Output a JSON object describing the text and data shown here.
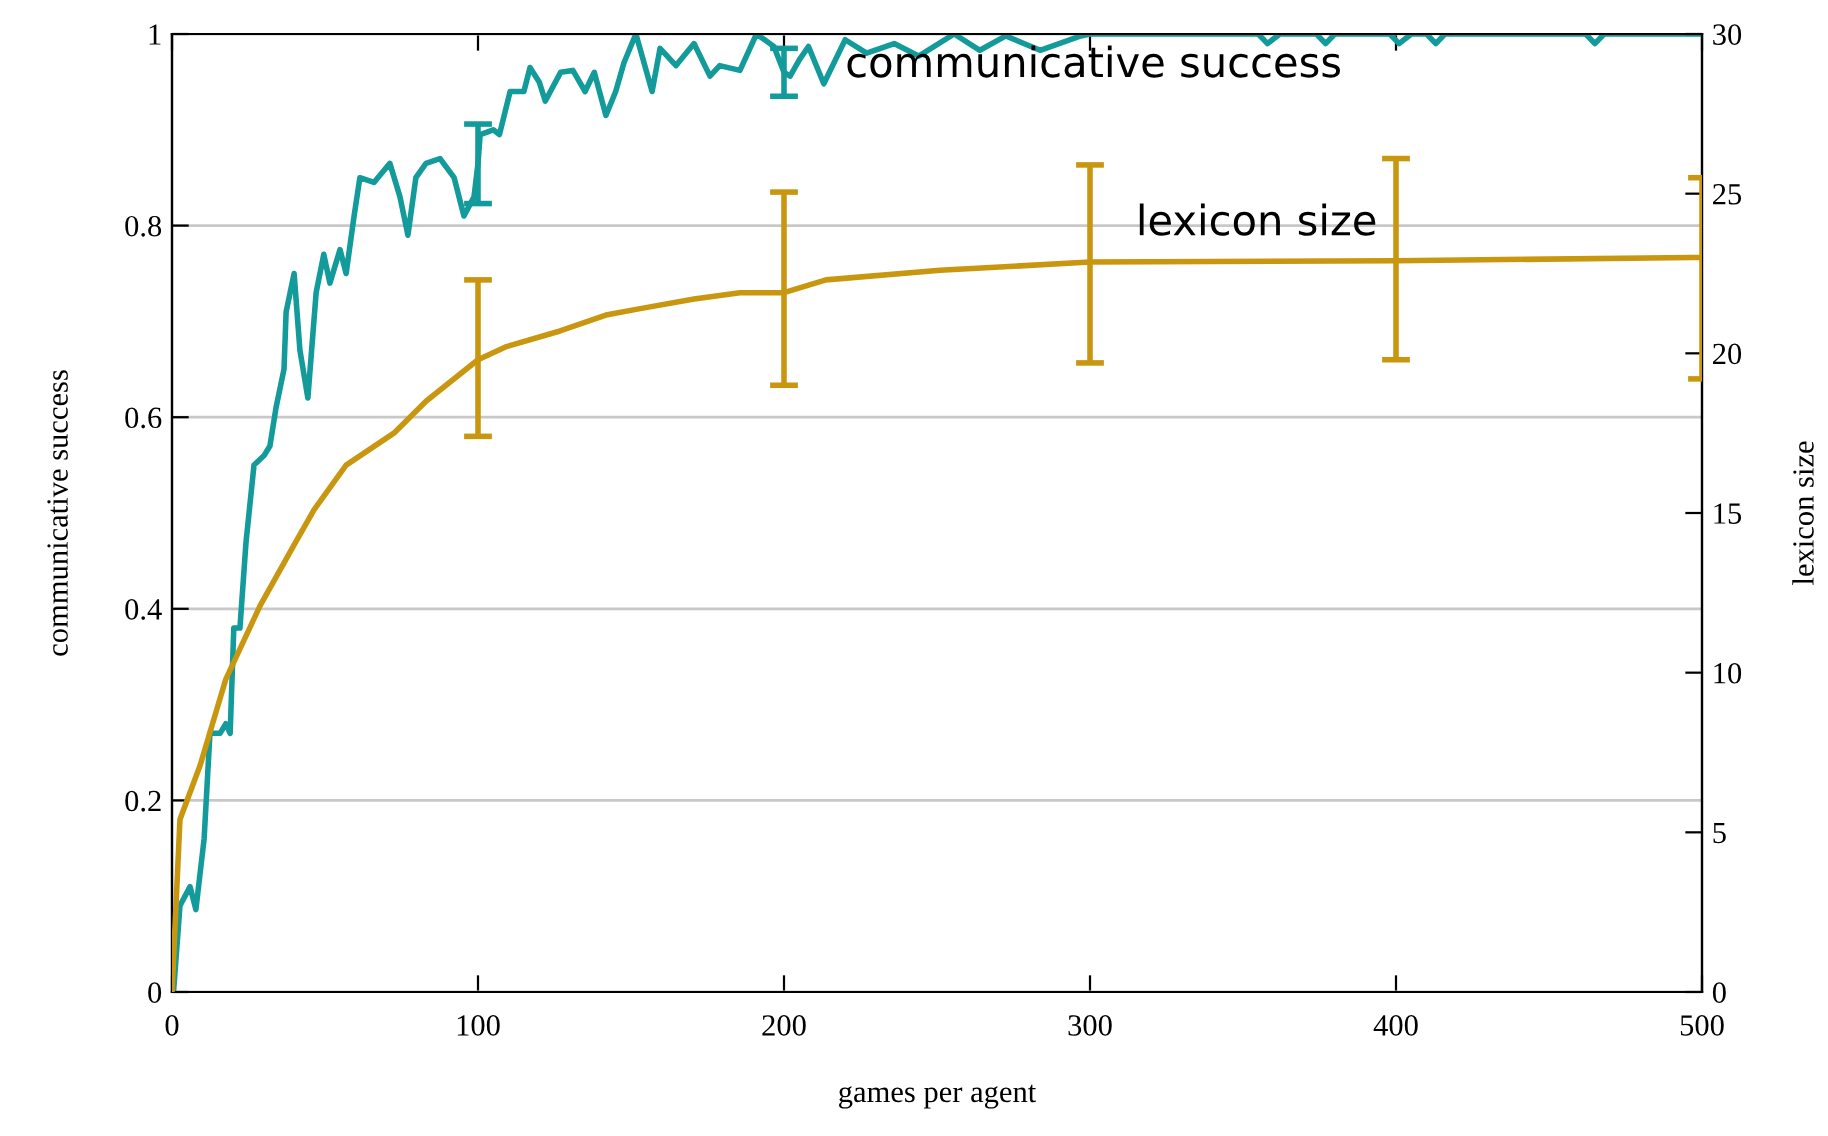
{
  "chart_data": {
    "type": "line",
    "xlabel": "games per agent",
    "ylabel": "communicative success",
    "y2label": "lexicon size",
    "xlim": [
      0,
      500
    ],
    "xticks": [
      0,
      100,
      200,
      300,
      400,
      500
    ],
    "ylim": [
      0,
      1
    ],
    "yticks": [
      0,
      0.2,
      0.4,
      0.6,
      0.8,
      1
    ],
    "y2lim": [
      0,
      30
    ],
    "y2ticks": [
      0,
      5,
      10,
      15,
      20,
      25,
      30
    ],
    "grid": "y",
    "legend": false,
    "marker": "none",
    "line_style": "solid",
    "series": [
      {
        "name": "communicative success",
        "color": "#129b9a",
        "x": [
          0.5,
          2.6,
          5.9,
          7.8,
          10.5,
          12.4,
          15.7,
          17.6,
          19,
          20.2,
          22.2,
          24.2,
          26.8,
          30.1,
          32,
          34,
          36.6,
          37.3,
          39.9,
          41.8,
          44.4,
          47.1,
          49.6,
          51.6,
          54.9,
          56.9,
          59.5,
          61.4,
          66,
          71.2,
          74.5,
          77.1,
          79.7,
          83,
          87.6,
          92.2,
          95.4,
          98.7,
          100,
          100.7,
          105,
          107,
          110.5,
          115,
          117,
          120,
          122,
          127,
          131,
          135,
          138,
          141.8,
          145,
          147.7,
          151.6,
          156.9,
          159.5,
          164.7,
          170.6,
          175.8,
          179,
          185.6,
          191,
          196.7,
          200,
          202,
          205,
          208,
          213,
          220,
          227,
          236,
          244,
          255.6,
          264,
          272.5,
          283.7,
          297,
          300,
          355,
          358,
          362,
          374,
          377,
          380,
          398,
          401,
          405,
          410,
          413,
          416,
          462,
          465,
          468,
          500
        ],
        "values": [
          0,
          0.09,
          0.11,
          0.086,
          0.16,
          0.27,
          0.27,
          0.28,
          0.27,
          0.38,
          0.38,
          0.47,
          0.55,
          0.56,
          0.57,
          0.61,
          0.65,
          0.71,
          0.75,
          0.67,
          0.62,
          0.73,
          0.77,
          0.74,
          0.775,
          0.75,
          0.81,
          0.85,
          0.845,
          0.865,
          0.83,
          0.79,
          0.85,
          0.865,
          0.87,
          0.85,
          0.81,
          0.83,
          0.865,
          0.895,
          0.9,
          0.895,
          0.94,
          0.94,
          0.965,
          0.95,
          0.93,
          0.96,
          0.962,
          0.94,
          0.96,
          0.915,
          0.94,
          0.97,
          1,
          0.94,
          0.985,
          0.967,
          0.99,
          0.956,
          0.967,
          0.962,
          1,
          0.987,
          0.96,
          0.956,
          0.973,
          0.987,
          0.948,
          0.994,
          0.98,
          0.99,
          0.977,
          1,
          0.983,
          0.998,
          0.983,
          0.998,
          1,
          1,
          0.99,
          1,
          1,
          0.99,
          1,
          1,
          0.99,
          1,
          1,
          0.99,
          1,
          1,
          0.99,
          1,
          1
        ],
        "errors": [
          null,
          null,
          null,
          null,
          null,
          null,
          null,
          null,
          null,
          null,
          null,
          null,
          null,
          null,
          null,
          null,
          null,
          null,
          null,
          null,
          null,
          null,
          null,
          null,
          null,
          null,
          null,
          null,
          null,
          null,
          null,
          null,
          null,
          null,
          null,
          null,
          null,
          null,
          [
            0.823,
            0.906
          ],
          null,
          null,
          null,
          null,
          null,
          null,
          null,
          null,
          null,
          null,
          null,
          null,
          null,
          null,
          null,
          null,
          null,
          null,
          null,
          null,
          null,
          null,
          null,
          null,
          null,
          [
            0.935,
            0.985
          ],
          null,
          null,
          null,
          null,
          null,
          null,
          null,
          null,
          null,
          null,
          null,
          null,
          null,
          null,
          null,
          null,
          null,
          null,
          null,
          null,
          null,
          null,
          null,
          null,
          null,
          null,
          null,
          null,
          null,
          null
        ]
      },
      {
        "name": "lexicon size",
        "color": "#c9960f",
        "axis": "y2",
        "x": [
          0,
          2.6,
          9.2,
          17.6,
          28.8,
          39.9,
          46.4,
          56.9,
          72.5,
          83,
          100,
          109,
          126.8,
          141.8,
          153,
          170.6,
          185.6,
          200,
          213.7,
          251,
          300,
          400,
          497,
          500
        ],
        "values": [
          0,
          5.4,
          7.1,
          9.8,
          12.1,
          14,
          15.1,
          16.5,
          17.5,
          18.5,
          19.8,
          20.2,
          20.7,
          21.2,
          21.4,
          21.7,
          21.9,
          21.9,
          22.3,
          22.6,
          22.86,
          22.9,
          23,
          23
        ],
        "errors": [
          null,
          null,
          null,
          null,
          null,
          null,
          null,
          null,
          null,
          null,
          [
            17.4,
            22.3
          ],
          null,
          null,
          null,
          null,
          null,
          null,
          [
            19,
            25.05
          ],
          null,
          null,
          [
            19.7,
            25.9
          ],
          [
            19.8,
            26.1
          ],
          null,
          [
            19.2,
            25.5
          ]
        ]
      }
    ]
  }
}
